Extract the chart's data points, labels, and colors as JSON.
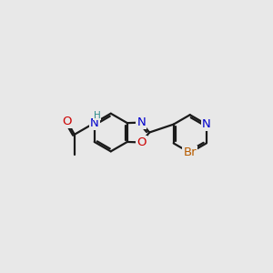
{
  "bg_color": "#e8e8e8",
  "bond_color": "#1a1a1a",
  "bond_width": 1.6,
  "atom_colors": {
    "N": "#0000cc",
    "O": "#cc0000",
    "Br": "#b85c00",
    "H": "#2e8b8b",
    "C": "#1a1a1a"
  },
  "font_size": 9.5,
  "fig_size": [
    3.0,
    3.0
  ],
  "dpi": 100
}
